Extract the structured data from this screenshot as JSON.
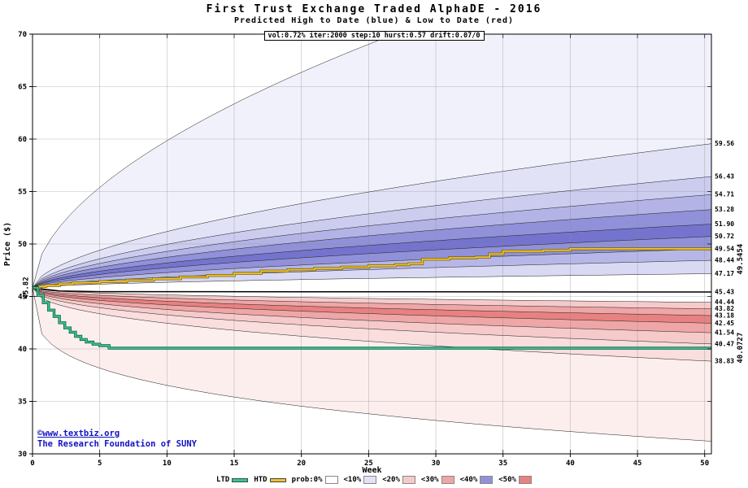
{
  "header": {
    "title": "First Trust Exchange Traded AlphaDE - 2016",
    "subtitle": "Predicted High to Date (blue) & Low to Date (red)",
    "params": "vol:0.72% iter:2000 step:10 hurst:0.57 drift:0.07/0"
  },
  "footer": {
    "line1": "©www.textbiz.org",
    "line2": "The Research Foundation of SUNY"
  },
  "legend": {
    "ltd_label": "LTD",
    "htd_label": "HTD",
    "ltd_color": "#35c695",
    "htd_color": "#f0c232",
    "prob_labels": [
      "prob:0%",
      "<10%",
      "<20%",
      "<30%",
      "<40%",
      "<50%"
    ],
    "prob_colors": [
      "#fdfdff",
      "#e2e2f7",
      "#f6caca",
      "#efa6a6",
      "#9191d9",
      "#e88181"
    ]
  },
  "chart_data": {
    "type": "area",
    "title": "First Trust Exchange Traded AlphaDE - 2016",
    "subtitle": "Predicted High to Date (blue) & Low to Date (red)",
    "params_note": "vol:0.72% iter:2000 step:10 hurst:0.57 drift:0.07/0",
    "xlabel": "Week",
    "ylabel": "Price ($)",
    "xlim": [
      0,
      50.5
    ],
    "ylim": [
      30,
      70
    ],
    "x_ticks": [
      0,
      5,
      10,
      15,
      20,
      25,
      30,
      35,
      40,
      45,
      50
    ],
    "y_ticks": [
      30,
      35,
      40,
      45,
      50,
      55,
      60,
      65,
      70
    ],
    "grid": true,
    "start": {
      "week": 0,
      "price": 45.82,
      "label": "45.82"
    },
    "fan": {
      "high": {
        "envelope_end": 80.0,
        "envelope_power": 0.55,
        "band_ends": [
          59.56,
          56.43,
          54.71,
          53.28,
          51.9,
          50.72,
          49.54,
          48.44,
          47.17
        ],
        "power": 0.58,
        "band_colors": [
          "#f1f1fb",
          "#e2e2f7",
          "#ccccef",
          "#b3b3e6",
          "#9191d9",
          "#7474ce",
          "#9191d9",
          "#b7b7e7",
          "#d9d9f3"
        ]
      },
      "low": {
        "envelope_end": 31.2,
        "envelope_power": 0.28,
        "band_ends": [
          44.44,
          43.82,
          43.18,
          42.45,
          41.54,
          40.47,
          38.83
        ],
        "power": 0.45,
        "band_colors": [
          "#f6caca",
          "#efa6a6",
          "#e88181",
          "#efa6a6",
          "#f6caca",
          "#fadddd",
          "#fdeeee"
        ]
      }
    },
    "mid_line": {
      "color": "#000000",
      "end_label": "45.43",
      "points": [
        [
          0,
          45.82
        ],
        [
          2,
          45.52
        ],
        [
          5,
          45.46
        ],
        [
          50.5,
          45.43
        ]
      ]
    },
    "htd_line": {
      "name": "HTD",
      "color": "#f0c232",
      "edge_color": "#7a6600",
      "final_label": "49.5454",
      "points": [
        [
          0,
          45.82
        ],
        [
          0.5,
          45.95
        ],
        [
          1,
          46.05
        ],
        [
          2,
          46.18
        ],
        [
          3,
          46.3
        ],
        [
          5,
          46.42
        ],
        [
          7,
          46.55
        ],
        [
          9,
          46.68
        ],
        [
          11,
          46.85
        ],
        [
          13,
          47.0
        ],
        [
          15,
          47.2
        ],
        [
          17,
          47.42
        ],
        [
          19,
          47.55
        ],
        [
          21,
          47.68
        ],
        [
          23,
          47.8
        ],
        [
          25,
          47.92
        ],
        [
          27,
          48.02
        ],
        [
          28,
          48.12
        ],
        [
          29,
          48.55
        ],
        [
          31,
          48.68
        ],
        [
          33,
          48.75
        ],
        [
          34,
          49.05
        ],
        [
          35,
          49.32
        ],
        [
          38,
          49.4
        ],
        [
          40,
          49.54
        ],
        [
          50.5,
          49.5454
        ]
      ]
    },
    "ltd_line": {
      "name": "LTD",
      "color": "#35c695",
      "edge_color": "#0a5c40",
      "final_label": "40.0727",
      "points": [
        [
          0,
          45.82
        ],
        [
          0.4,
          45.1
        ],
        [
          0.8,
          44.4
        ],
        [
          1.2,
          43.7
        ],
        [
          1.6,
          43.1
        ],
        [
          2,
          42.5
        ],
        [
          2.4,
          42.0
        ],
        [
          2.8,
          41.6
        ],
        [
          3.2,
          41.2
        ],
        [
          3.6,
          40.9
        ],
        [
          4,
          40.65
        ],
        [
          4.5,
          40.45
        ],
        [
          5,
          40.32
        ],
        [
          5.7,
          40.0727
        ],
        [
          50.5,
          40.0727
        ]
      ]
    },
    "right_labels": [
      "59.56",
      "56.43",
      "54.71",
      "53.28",
      "51.90",
      "50.72",
      "49.54",
      "48.44",
      "47.17",
      "45.43",
      "44.44",
      "43.82",
      "43.18",
      "42.45",
      "41.54",
      "40.47",
      "38.83"
    ],
    "rotated_labels": [
      {
        "text": "49.5454",
        "value": 48.55,
        "color": "#b8960c"
      },
      {
        "text": "40.0727",
        "value": 40.1,
        "color": "#16a570"
      }
    ]
  }
}
